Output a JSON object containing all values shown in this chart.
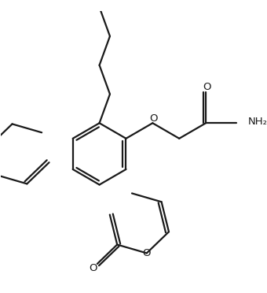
{
  "background": "#ffffff",
  "line_color": "#1a1a1a",
  "line_width": 1.6,
  "figsize": [
    3.4,
    3.72
  ],
  "dpi": 100,
  "xlim": [
    0,
    10
  ],
  "ylim": [
    0,
    11
  ]
}
